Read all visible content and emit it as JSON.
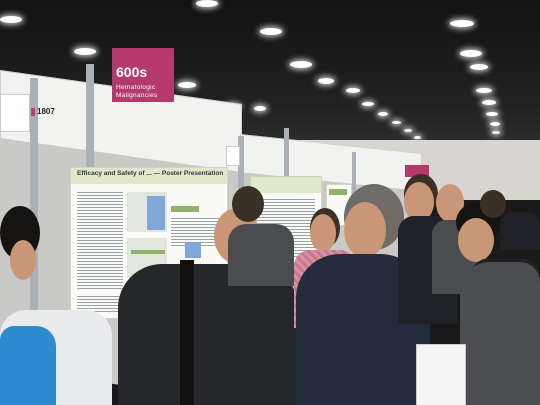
{
  "sign": {
    "number": "600s",
    "subtitle": "Hematologic Malignancies"
  },
  "booth": {
    "number": "1807"
  },
  "poster": {
    "title": "Efficacy and Safety of ... — Poster Presentation"
  },
  "colors": {
    "sign": "#b43a6c",
    "ceiling": "#1a1a1a",
    "panel": "#c9c9c7"
  }
}
